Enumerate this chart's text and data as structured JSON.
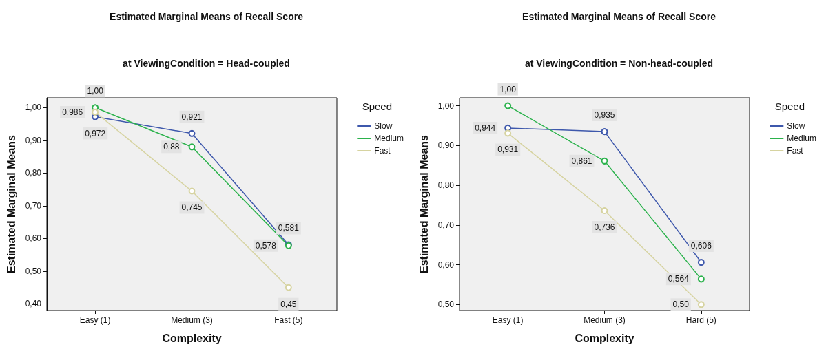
{
  "chart_data": [
    {
      "type": "line",
      "title": "Estimated Marginal Means of Recall Score",
      "subtitle": "at ViewingCondition = Head-coupled",
      "xlabel": "Complexity",
      "ylabel": "Estimated Marginal Means",
      "legend_title": "Speed",
      "legend": "right",
      "marker": "circle",
      "grid": false,
      "categories": [
        "Easy (1)",
        "Medium (3)",
        "Fast (5)"
      ],
      "ylim": [
        0.38,
        1.03
      ],
      "yticks": [
        {
          "value": 0.4,
          "label": "0,40"
        },
        {
          "value": 0.5,
          "label": "0,50"
        },
        {
          "value": 0.6,
          "label": "0,60"
        },
        {
          "value": 0.7,
          "label": "0,70"
        },
        {
          "value": 0.8,
          "label": "0,80"
        },
        {
          "value": 0.9,
          "label": "0,90"
        },
        {
          "value": 1.0,
          "label": "1,00"
        }
      ],
      "series": [
        {
          "name": "Slow",
          "color": "#3e58ac",
          "values": [
            0.972,
            0.921,
            0.581
          ],
          "value_labels": [
            "0,972",
            "0,921",
            "0,581"
          ]
        },
        {
          "name": "Medium",
          "color": "#2bb24c",
          "values": [
            1.0,
            0.88,
            0.578
          ],
          "value_labels": [
            "1,00",
            "0,88",
            "0,578"
          ]
        },
        {
          "name": "Fast",
          "color": "#d6d3a0",
          "values": [
            0.986,
            0.745,
            0.45
          ],
          "value_labels": [
            "0,986",
            "0,745",
            "0,45"
          ]
        }
      ]
    },
    {
      "type": "line",
      "title": "Estimated Marginal Means of Recall Score",
      "subtitle": "at ViewingCondition = Non-head-coupled",
      "xlabel": "Complexity",
      "ylabel": "Estimated Marginal Means",
      "legend_title": "Speed",
      "legend": "right",
      "marker": "circle",
      "grid": false,
      "categories": [
        "Easy (1)",
        "Medium (3)",
        "Hard (5)"
      ],
      "ylim": [
        0.485,
        1.02
      ],
      "yticks": [
        {
          "value": 0.5,
          "label": "0,50"
        },
        {
          "value": 0.6,
          "label": "0,60"
        },
        {
          "value": 0.7,
          "label": "0,70"
        },
        {
          "value": 0.8,
          "label": "0,80"
        },
        {
          "value": 0.9,
          "label": "0,90"
        },
        {
          "value": 1.0,
          "label": "1,00"
        }
      ],
      "series": [
        {
          "name": "Slow",
          "color": "#3e58ac",
          "values": [
            0.944,
            0.935,
            0.606
          ],
          "value_labels": [
            "0,944",
            "0,935",
            "0,606"
          ]
        },
        {
          "name": "Medium",
          "color": "#2bb24c",
          "values": [
            1.0,
            0.861,
            0.564
          ],
          "value_labels": [
            "1,00",
            "0,861",
            "0,564"
          ]
        },
        {
          "name": "Fast",
          "color": "#d6d3a0",
          "values": [
            0.931,
            0.736,
            0.5
          ],
          "value_labels": [
            "0,931",
            "0,736",
            "0,50"
          ]
        }
      ]
    }
  ]
}
